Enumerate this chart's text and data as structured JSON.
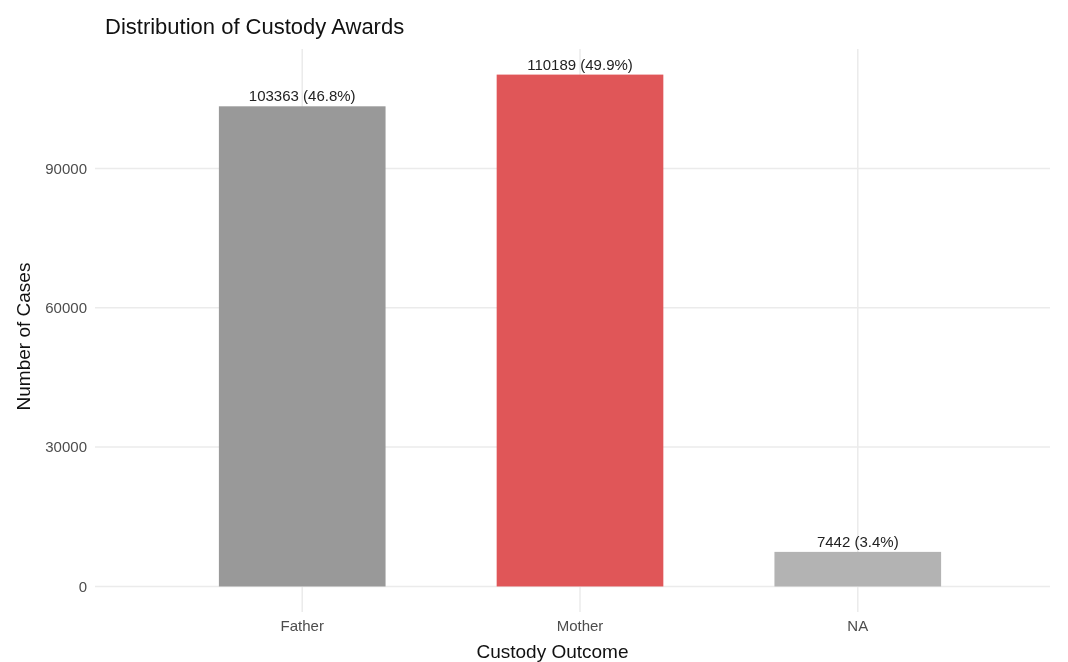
{
  "chart_data": {
    "type": "bar",
    "title": "Distribution of Custody Awards",
    "xlabel": "Custody Outcome",
    "ylabel": "Number of Cases",
    "categories": [
      "Father",
      "Mother",
      "NA"
    ],
    "values": [
      103363,
      110189,
      7442
    ],
    "colors": [
      "#999999",
      "#e05658",
      "#b3b3b3"
    ],
    "value_labels": [
      "103363 (46.8%)",
      "110189 (49.9%)",
      "7442 (3.4%)"
    ],
    "ylim": [
      -5500,
      115700
    ],
    "yticks": [
      0,
      30000,
      60000,
      90000
    ],
    "grid": true
  }
}
